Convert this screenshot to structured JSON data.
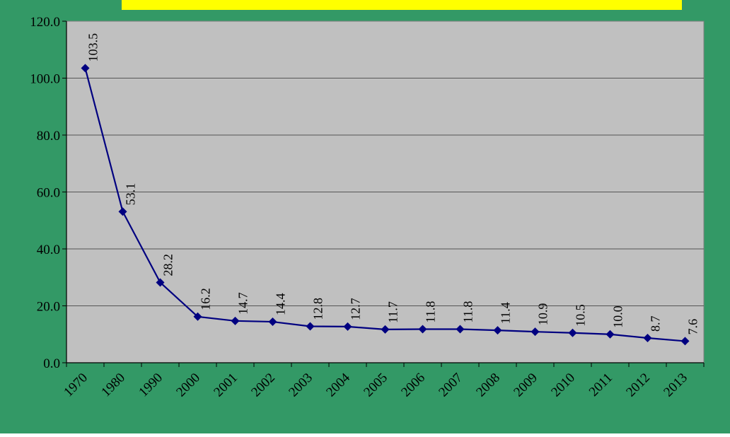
{
  "colors": {
    "background": "#339966",
    "plot_area": "#c0c0c0",
    "title_banner": "#ffff00",
    "series_line": "#000080",
    "gridline": "#555555"
  },
  "chart_data": {
    "type": "line",
    "title": "",
    "xlabel": "",
    "ylabel": "",
    "categories": [
      "1970",
      "1980",
      "1990",
      "2000",
      "2001",
      "2002",
      "2003",
      "2004",
      "2005",
      "2006",
      "2007",
      "2008",
      "2009",
      "2010",
      "2011",
      "2012",
      "2013"
    ],
    "series": [
      {
        "values": [
          103.5,
          53.1,
          28.2,
          16.2,
          14.7,
          14.4,
          12.8,
          12.7,
          11.7,
          11.8,
          11.8,
          11.4,
          10.9,
          10.5,
          10.0,
          8.7,
          7.6
        ],
        "labels": [
          "103.5",
          "53.1",
          "28.2",
          "16.2",
          "14.7",
          "14.4",
          "12.8",
          "12.7",
          "11.7",
          "11.8",
          "11.8",
          "11.4",
          "10.9",
          "10.5",
          "10.0",
          "8.7",
          "7.6"
        ],
        "marker": "diamond"
      }
    ],
    "ylim": [
      0,
      120
    ],
    "yticks": [
      "0.0",
      "20.0",
      "40.0",
      "60.0",
      "80.0",
      "100.0",
      "120.0"
    ],
    "grid": true,
    "legend": "none"
  }
}
